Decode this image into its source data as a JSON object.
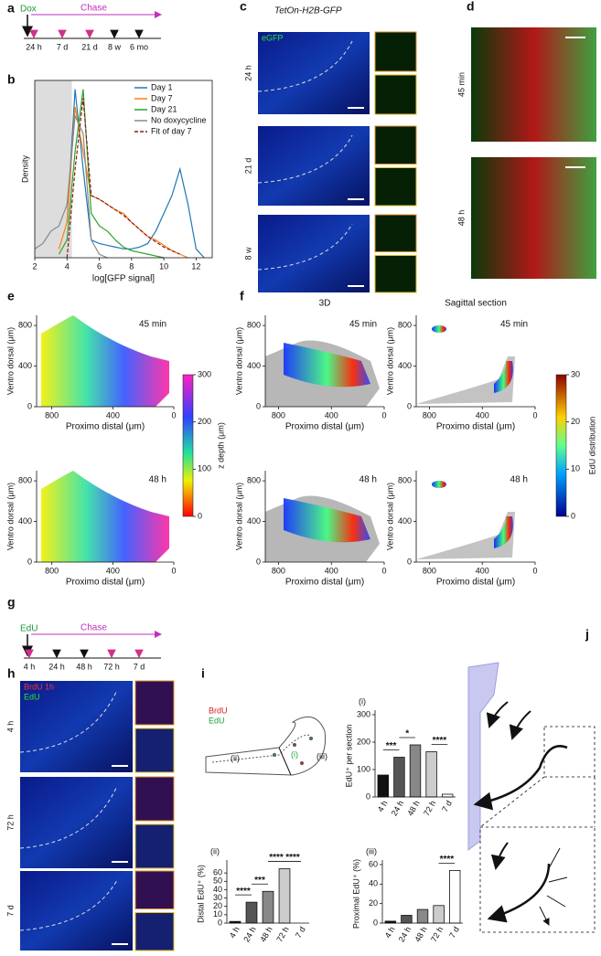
{
  "panel_labels": [
    "a",
    "b",
    "c",
    "d",
    "e",
    "f",
    "g",
    "h",
    "i",
    "j"
  ],
  "timeline_a": {
    "start": "Dox",
    "chase": "Chase",
    "ticks": [
      "24 h",
      "7 d",
      "21 d",
      "8 w",
      "6 mo"
    ]
  },
  "panel_c": {
    "title": "TetOn-H2B-GFP",
    "channel": "eGFP",
    "rows": [
      "24 h",
      "21 d",
      "8 w"
    ]
  },
  "panel_d": {
    "rows": [
      "45 min",
      "48 h"
    ]
  },
  "panel_e": {
    "plots": [
      "45 min",
      "48 h"
    ],
    "xlabel": "Proximo distal (μm)",
    "ylabel": "Ventro dorsal (μm)",
    "xlim": [
      900,
      0
    ],
    "ylim": [
      0,
      900
    ],
    "xticks": [
      800,
      400,
      0
    ],
    "yticks": [
      0,
      400,
      800
    ],
    "colorbar": {
      "label": "z depth (μm)",
      "lim": [
        0,
        300
      ],
      "ticks": [
        0,
        100,
        200,
        300
      ]
    }
  },
  "panel_f": {
    "columns": [
      "3D",
      "Sagittal section"
    ],
    "plots": [
      "45 min",
      "45 min",
      "48 h",
      "48 h"
    ],
    "xlabel": "Proximo distal (μm)",
    "ylabel": "Ventro dorsal (μm)",
    "xlim": [
      900,
      0
    ],
    "ylim": [
      0,
      900
    ],
    "xticks": [
      800,
      400,
      0
    ],
    "yticks": [
      0,
      400,
      800
    ],
    "colorbar": {
      "label": "EdU distribution",
      "lim": [
        0,
        30
      ],
      "ticks": [
        0,
        10,
        20,
        30
      ]
    }
  },
  "timeline_g": {
    "start": "EdU",
    "chase": "Chase",
    "ticks": [
      "4 h",
      "24 h",
      "48 h",
      "72 h",
      "7 d"
    ]
  },
  "panel_h": {
    "channels": [
      "BrdU 1h",
      "EdU"
    ],
    "rows": [
      "4 h",
      "72 h",
      "7 d"
    ]
  },
  "panel_i_schematic": {
    "labels": [
      "BrdU",
      "EdU",
      "(i)",
      "(ii)",
      "(iii)"
    ]
  },
  "chart_data": [
    {
      "type": "line",
      "ylabel": "Density",
      "xlabel": "log[GFP signal]",
      "xlim": [
        2,
        13
      ],
      "xticks": [
        2,
        4,
        6,
        8,
        10,
        12
      ],
      "ylim": [
        0,
        1
      ],
      "shaded_range": [
        2,
        4.3
      ],
      "legend": "upper right",
      "x": [
        2,
        2.5,
        3,
        3.5,
        4,
        4.5,
        5,
        5.5,
        6,
        6.5,
        7,
        7.5,
        8,
        8.5,
        9,
        9.5,
        10,
        10.5,
        11,
        11.5,
        12,
        12.5
      ],
      "series": [
        {
          "name": "Day 1",
          "color": "#1f77b4",
          "values": [
            null,
            null,
            null,
            null,
            0.2,
            0.95,
            0.5,
            0.1,
            0.08,
            0.07,
            0.06,
            0.05,
            0.05,
            0.06,
            0.08,
            0.15,
            0.25,
            0.35,
            0.5,
            0.3,
            0.05,
            0
          ]
        },
        {
          "name": "Day 7",
          "color": "#ff7f0e",
          "values": [
            null,
            null,
            null,
            0.05,
            0.2,
            0.85,
            0.6,
            0.35,
            0.33,
            0.3,
            0.27,
            0.25,
            0.2,
            0.16,
            0.12,
            0.1,
            0.07,
            0.04,
            0.02,
            0,
            null,
            null
          ]
        },
        {
          "name": "Day 21",
          "color": "#2ca02c",
          "values": [
            null,
            null,
            null,
            0.02,
            0.1,
            0.6,
            0.95,
            0.25,
            0.18,
            0.15,
            0.1,
            0.06,
            0.04,
            0.03,
            0.02,
            0.01,
            0,
            null,
            null,
            null,
            null,
            null
          ]
        },
        {
          "name": "No doxycycline",
          "color": "#888888",
          "values": [
            0.05,
            0.08,
            0.15,
            0.18,
            0.3,
            0.8,
            0.7,
            0.1,
            0.02,
            0,
            null,
            null,
            null,
            null,
            null,
            null,
            null,
            null,
            null,
            null,
            null,
            null
          ]
        },
        {
          "name": "Fit of day 7",
          "color": "#8b1a1a",
          "dashed": true,
          "values": [
            null,
            null,
            null,
            null,
            0,
            0.5,
            0.9,
            0.35,
            0.33,
            0.3,
            0.27,
            0.24,
            0.2,
            0.16,
            0.12,
            0.09,
            0.06,
            0.04,
            0.02,
            null,
            null,
            null
          ]
        }
      ]
    },
    {
      "type": "bar",
      "panel": "(i)",
      "ylabel": "EdU⁺ per section",
      "categories": [
        "4 h",
        "24 h",
        "48 h",
        "72 h",
        "7 d"
      ],
      "values": [
        80,
        145,
        190,
        165,
        10
      ],
      "colors": [
        "#111111",
        "#555555",
        "#888888",
        "#cccccc",
        "#ffffff"
      ],
      "ylim": [
        0,
        300
      ],
      "yticks": [
        0,
        100,
        200,
        300
      ],
      "annotations": [
        "***",
        "*",
        "****"
      ]
    },
    {
      "type": "bar",
      "panel": "(ii)",
      "ylabel": "Distal EdU⁺ (%)",
      "categories": [
        "4 h",
        "24 h",
        "48 h",
        "72 h",
        "7 d"
      ],
      "values": [
        2,
        25,
        38,
        65,
        0
      ],
      "colors": [
        "#111111",
        "#555555",
        "#888888",
        "#cccccc",
        "#ffffff"
      ],
      "ylim": [
        0,
        70
      ],
      "yticks": [
        0,
        10,
        20,
        30,
        40,
        50,
        60
      ],
      "annotations": [
        "****",
        "***",
        "****",
        "****"
      ]
    },
    {
      "type": "bar",
      "panel": "(iii)",
      "ylabel": "Proximal EdU⁺ (%)",
      "categories": [
        "4 h",
        "24 h",
        "48 h",
        "72 h",
        "7 d"
      ],
      "values": [
        2,
        8,
        14,
        18,
        54
      ],
      "colors": [
        "#111111",
        "#555555",
        "#888888",
        "#cccccc",
        "#ffffff"
      ],
      "ylim": [
        0,
        60
      ],
      "yticks": [
        0,
        20,
        40,
        60
      ],
      "annotations": [
        "****"
      ]
    }
  ]
}
